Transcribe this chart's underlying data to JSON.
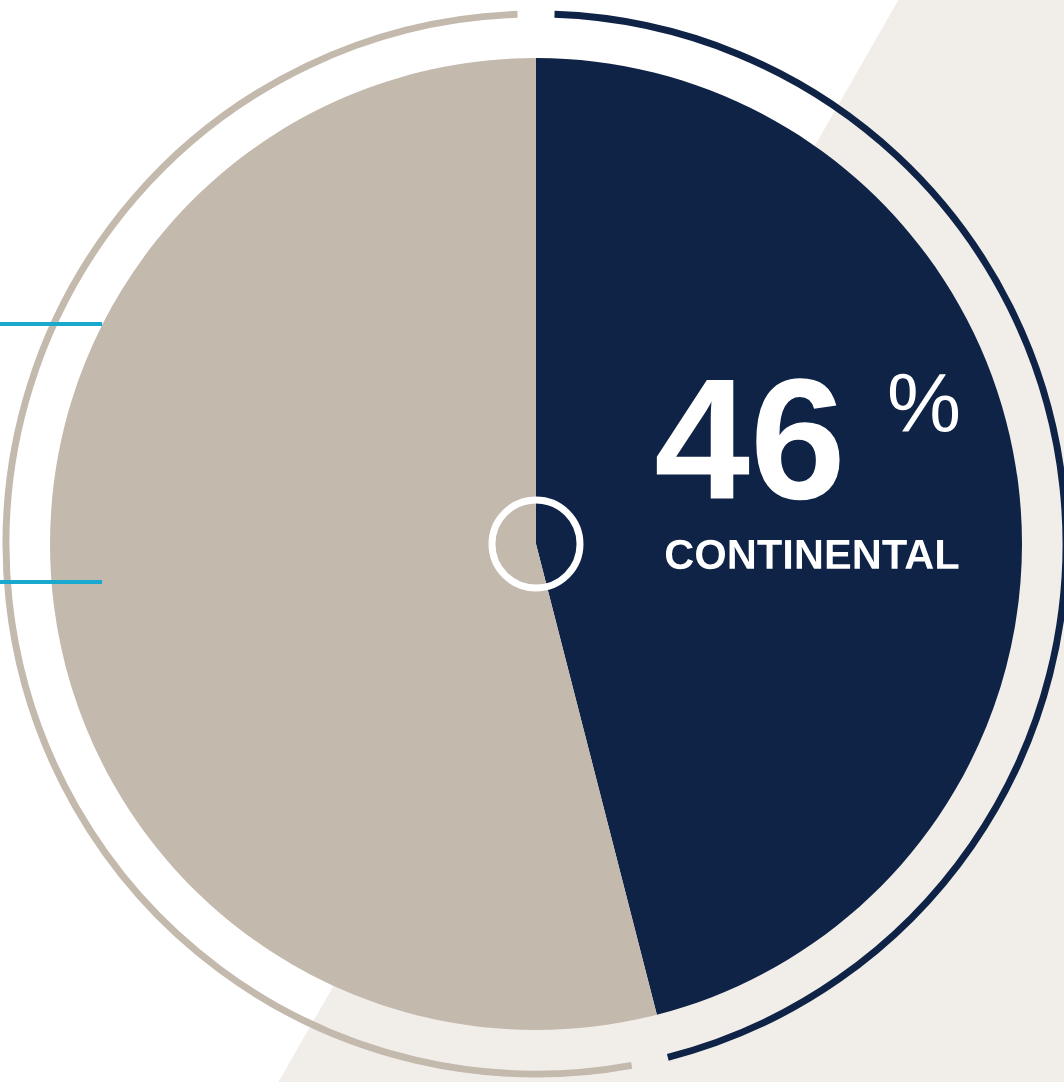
{
  "chart_data": {
    "type": "pie",
    "categories": [
      "CONTINENTAL",
      null
    ],
    "values": [
      46,
      54
    ],
    "colors": [
      "#0f2347",
      "#c4b9ad"
    ],
    "value_labels": [
      "46",
      null
    ],
    "annotations": [
      "%"
    ]
  }
}
